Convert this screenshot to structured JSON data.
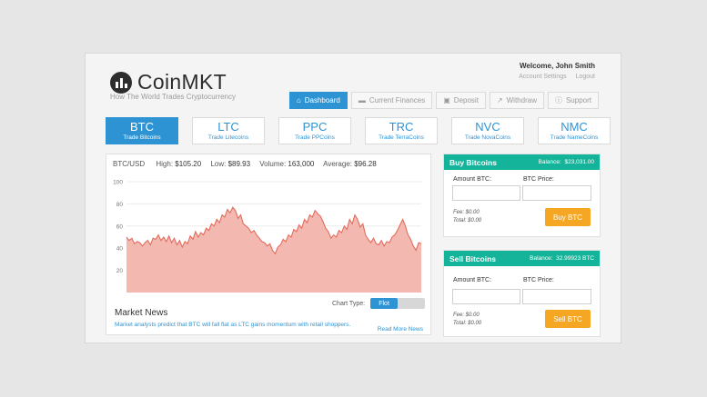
{
  "brand": {
    "name": "CoinMKT",
    "tagline": "How The World Trades Cryptocurrency"
  },
  "user": {
    "welcome": "Welcome, John Smith",
    "links": [
      "Account Settings",
      "Logout"
    ]
  },
  "nav": [
    {
      "label": "Dashboard",
      "icon": "home-icon",
      "active": true
    },
    {
      "label": "Current Finances",
      "icon": "money-icon",
      "active": false
    },
    {
      "label": "Deposit",
      "icon": "deposit-icon",
      "active": false
    },
    {
      "label": "Withdraw",
      "icon": "withdraw-icon",
      "active": false
    },
    {
      "label": "Support",
      "icon": "info-icon",
      "active": false
    }
  ],
  "coins": [
    {
      "symbol": "BTC",
      "name": "Trade Bitcoins",
      "active": true
    },
    {
      "symbol": "LTC",
      "name": "Trade Litecoins",
      "active": false
    },
    {
      "symbol": "PPC",
      "name": "Trade PPCoins",
      "active": false
    },
    {
      "symbol": "TRC",
      "name": "Trade TerraCoins",
      "active": false
    },
    {
      "symbol": "NVC",
      "name": "Trade NovaCoins",
      "active": false
    },
    {
      "symbol": "NMC",
      "name": "Trade NameCoins",
      "active": false
    }
  ],
  "stats": {
    "pair": "BTC/USD",
    "high_label": "High:",
    "high": "$105.20",
    "low_label": "Low:",
    "low": "$89.93",
    "volume_label": "Volume:",
    "volume": "163,000",
    "average_label": "Average:",
    "average": "$96.28"
  },
  "chart_data": {
    "type": "area",
    "yticks": [
      20,
      40,
      60,
      80,
      100
    ],
    "ylim": [
      0,
      100
    ],
    "values": [
      50,
      47,
      49,
      44,
      46,
      45,
      42,
      45,
      47,
      43,
      49,
      48,
      52,
      47,
      50,
      46,
      51,
      45,
      49,
      43,
      47,
      41,
      46,
      44,
      51,
      48,
      55,
      50,
      54,
      52,
      58,
      56,
      62,
      60,
      66,
      63,
      70,
      68,
      75,
      72,
      77,
      74,
      67,
      70,
      62,
      60,
      58,
      54,
      56,
      52,
      49,
      46,
      45,
      42,
      44,
      38,
      35,
      41,
      43,
      48,
      46,
      52,
      50,
      57,
      55,
      61,
      58,
      66,
      63,
      70,
      68,
      74,
      71,
      69,
      64,
      58,
      55,
      49,
      52,
      50,
      56,
      54,
      60,
      57,
      66,
      62,
      70,
      66,
      59,
      62,
      52,
      48,
      45,
      49,
      44,
      43,
      47,
      42,
      46,
      45,
      50,
      52,
      56,
      61,
      66,
      60,
      52,
      48,
      42,
      38,
      45,
      44
    ]
  },
  "chart_type": {
    "label": "Chart Type:",
    "option": "Flot"
  },
  "news": {
    "title": "Market News",
    "text": "Market analysts predict that BTC will fall flat as LTC gains momentum with retail shoppers.",
    "more": "Read More News"
  },
  "buy": {
    "title": "Buy Bitcoins",
    "balance_label": "Balance:",
    "balance": "$23,031.00",
    "amount_label": "Amount BTC:",
    "price_label": "BTC Price:",
    "fee": "Fee: $0.00",
    "total": "Total: $0.00",
    "button": "Buy BTC"
  },
  "sell": {
    "title": "Sell Bitcoins",
    "balance_label": "Balance:",
    "balance": "32.99923 BTC",
    "amount_label": "Amount BTC:",
    "price_label": "BTC Price:",
    "fee": "Fee: $0.00",
    "total": "Total: $0.00",
    "button": "Sell BTC"
  },
  "colors": {
    "accent": "#2e93d3",
    "teal": "#14b49a",
    "orange": "#f5a623",
    "chart_line": "#e36b5c",
    "chart_fill": "#f3b9b1"
  }
}
